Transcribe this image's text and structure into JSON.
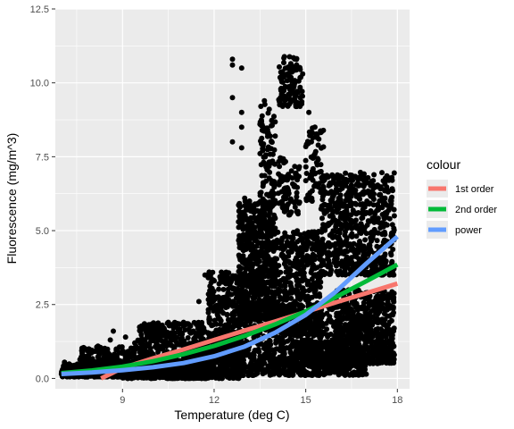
{
  "chart_data": {
    "type": "scatter",
    "xlabel": "Temperature (deg C)",
    "ylabel": "Fluorescence (mg/m^3)",
    "xlim": [
      6.8,
      18.4
    ],
    "ylim": [
      -0.35,
      12.5
    ],
    "x_ticks": [
      9,
      12,
      15,
      18
    ],
    "x_tick_labels": [
      "9",
      "12",
      "15",
      "18"
    ],
    "y_ticks": [
      0.0,
      2.5,
      5.0,
      7.5,
      10.0,
      12.5
    ],
    "y_tick_labels": [
      "0.0",
      "2.5",
      "5.0",
      "7.5",
      "10.0",
      "12.5"
    ],
    "grid": true,
    "panel_background": "#ebebeb",
    "grid_color": "#ffffff",
    "point_color": "#000000",
    "legend": {
      "title": "colour",
      "position": "right",
      "entries": [
        {
          "label": "1st order",
          "color": "#F8766D"
        },
        {
          "label": "2nd order",
          "color": "#00BA38"
        },
        {
          "label": "power",
          "color": "#619CFF"
        }
      ]
    },
    "scatter_clusters": [
      {
        "x": [
          7.0,
          9.5
        ],
        "y": [
          0.05,
          0.5
        ],
        "n": 500
      },
      {
        "x": [
          7.6,
          9.8
        ],
        "y": [
          0.3,
          1.1
        ],
        "n": 260
      },
      {
        "x": [
          9.0,
          11.8
        ],
        "y": [
          0.0,
          0.6
        ],
        "n": 700
      },
      {
        "x": [
          9.5,
          11.8
        ],
        "y": [
          0.4,
          1.9
        ],
        "n": 380
      },
      {
        "x": [
          11.0,
          12.9
        ],
        "y": [
          0.0,
          1.2
        ],
        "n": 500
      },
      {
        "x": [
          11.8,
          12.9
        ],
        "y": [
          0.8,
          3.6
        ],
        "n": 320
      },
      {
        "x": [
          12.8,
          17.0
        ],
        "y": [
          0.1,
          2.5
        ],
        "n": 900
      },
      {
        "x": [
          12.8,
          14.0
        ],
        "y": [
          2.0,
          6.0
        ],
        "n": 700
      },
      {
        "x": [
          14.0,
          15.5
        ],
        "y": [
          1.5,
          5.0
        ],
        "n": 500
      },
      {
        "x": [
          13.5,
          14.0
        ],
        "y": [
          5.0,
          9.5
        ],
        "n": 120
      },
      {
        "x": [
          14.1,
          14.8
        ],
        "y": [
          5.5,
          7.5
        ],
        "n": 90
      },
      {
        "x": [
          14.1,
          14.9
        ],
        "y": [
          9.2,
          10.9
        ],
        "n": 110
      },
      {
        "x": [
          15.0,
          15.6
        ],
        "y": [
          6.0,
          8.6
        ],
        "n": 70
      },
      {
        "x": [
          15.5,
          17.9
        ],
        "y": [
          3.5,
          7.0
        ],
        "n": 700
      },
      {
        "x": [
          16.0,
          17.9
        ],
        "y": [
          0.5,
          3.0
        ],
        "n": 600
      },
      {
        "x": [
          14.5,
          16.5
        ],
        "y": [
          0.4,
          1.3
        ],
        "n": 260
      }
    ],
    "scatter_points": [
      {
        "x": 12.6,
        "y": 10.8
      },
      {
        "x": 12.6,
        "y": 10.6
      },
      {
        "x": 12.6,
        "y": 9.5
      },
      {
        "x": 12.6,
        "y": 8.0
      },
      {
        "x": 12.9,
        "y": 10.5
      },
      {
        "x": 12.9,
        "y": 9.0
      },
      {
        "x": 12.9,
        "y": 7.8
      },
      {
        "x": 14.6,
        "y": 10.85
      },
      {
        "x": 14.7,
        "y": 10.6
      },
      {
        "x": 14.4,
        "y": 10.3
      },
      {
        "x": 14.2,
        "y": 10.1
      },
      {
        "x": 14.9,
        "y": 10.3
      },
      {
        "x": 15.1,
        "y": 9.0
      },
      {
        "x": 15.3,
        "y": 8.5
      },
      {
        "x": 14.0,
        "y": 8.2
      },
      {
        "x": 13.7,
        "y": 7.2
      },
      {
        "x": 13.6,
        "y": 6.5
      },
      {
        "x": 13.3,
        "y": 5.8
      },
      {
        "x": 12.9,
        "y": 8.5
      },
      {
        "x": 13.5,
        "y": 8.6
      },
      {
        "x": 15.3,
        "y": 7.6
      },
      {
        "x": 15.5,
        "y": 7.0
      },
      {
        "x": 16.2,
        "y": 6.8
      },
      {
        "x": 16.5,
        "y": 6.7
      },
      {
        "x": 16.9,
        "y": 6.5
      },
      {
        "x": 13.0,
        "y": 6.1
      },
      {
        "x": 12.8,
        "y": 5.3
      },
      {
        "x": 17.5,
        "y": 5.8
      },
      {
        "x": 17.8,
        "y": 5.9
      },
      {
        "x": 17.9,
        "y": 5.5
      },
      {
        "x": 17.5,
        "y": 1.2
      },
      {
        "x": 17.8,
        "y": 1.0
      },
      {
        "x": 17.9,
        "y": 0.8
      },
      {
        "x": 16.0,
        "y": 1.3
      },
      {
        "x": 15.0,
        "y": 1.0
      },
      {
        "x": 14.5,
        "y": 0.9
      },
      {
        "x": 13.2,
        "y": 0.8
      },
      {
        "x": 7.9,
        "y": 1.0
      },
      {
        "x": 8.0,
        "y": 0.9
      },
      {
        "x": 8.4,
        "y": 0.9
      },
      {
        "x": 8.6,
        "y": 1.3
      },
      {
        "x": 8.7,
        "y": 1.6
      },
      {
        "x": 9.1,
        "y": 1.4
      },
      {
        "x": 9.4,
        "y": 1.2
      },
      {
        "x": 9.8,
        "y": 1.5
      },
      {
        "x": 10.3,
        "y": 1.8
      },
      {
        "x": 10.5,
        "y": 1.9
      },
      {
        "x": 11.0,
        "y": 1.9
      },
      {
        "x": 11.5,
        "y": 2.6
      },
      {
        "x": 11.7,
        "y": 3.5
      },
      {
        "x": 7.1,
        "y": 0.55
      },
      {
        "x": 7.0,
        "y": 0.15
      },
      {
        "x": 7.2,
        "y": 0.12
      },
      {
        "x": 14.0,
        "y": 0.55
      },
      {
        "x": 14.5,
        "y": 0.5
      },
      {
        "x": 15.5,
        "y": 0.45
      },
      {
        "x": 16.0,
        "y": 0.5
      },
      {
        "x": 16.8,
        "y": 0.4
      },
      {
        "x": 17.0,
        "y": 0.6
      },
      {
        "x": 12.0,
        "y": 0.3
      }
    ],
    "series": [
      {
        "name": "1st order",
        "color": "#F8766D",
        "x": [
          8.3,
          9.0,
          10.0,
          11.0,
          12.0,
          13.0,
          14.0,
          15.0,
          16.0,
          17.0,
          18.0
        ],
        "y": [
          0.0,
          0.35,
          0.68,
          0.98,
          1.3,
          1.62,
          1.93,
          2.25,
          2.58,
          2.89,
          3.21
        ]
      },
      {
        "name": "2nd order",
        "color": "#00BA38",
        "x": [
          7.0,
          8.0,
          9.0,
          10.0,
          11.0,
          12.0,
          13.0,
          14.0,
          15.0,
          16.0,
          17.0,
          18.0
        ],
        "y": [
          0.18,
          0.27,
          0.4,
          0.58,
          0.82,
          1.1,
          1.44,
          1.83,
          2.27,
          2.76,
          3.3,
          3.85
        ]
      },
      {
        "name": "power",
        "color": "#619CFF",
        "x": [
          7.0,
          8.0,
          9.0,
          10.0,
          11.0,
          12.0,
          13.0,
          14.0,
          15.0,
          16.0,
          17.0,
          18.0
        ],
        "y": [
          0.15,
          0.2,
          0.28,
          0.38,
          0.52,
          0.75,
          1.08,
          1.55,
          2.15,
          2.95,
          3.9,
          4.8
        ]
      }
    ]
  }
}
